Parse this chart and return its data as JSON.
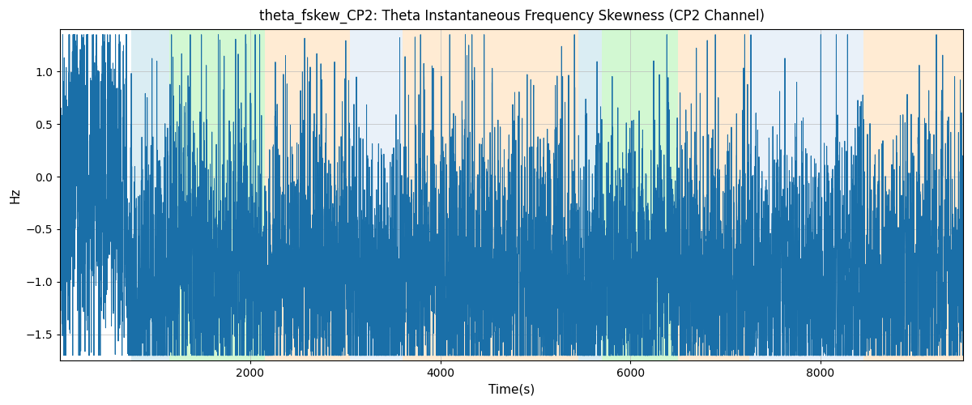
{
  "title": "theta_fskew_CP2: Theta Instantaneous Frequency Skewness (CP2 Channel)",
  "xlabel": "Time(s)",
  "ylabel": "Hz",
  "xlim": [
    0,
    9500
  ],
  "ylim": [
    -1.75,
    1.4
  ],
  "yticks": [
    -1.5,
    -1.0,
    -0.5,
    0.0,
    0.5,
    1.0
  ],
  "xticks": [
    2000,
    4000,
    6000,
    8000
  ],
  "line_color": "#1a6fa8",
  "line_width": 0.7,
  "background_color": "#ffffff",
  "grid_color": "#bbbbbb",
  "bands": [
    {
      "xmin": 750,
      "xmax": 1150,
      "color": "#add8e6",
      "alpha": 0.45
    },
    {
      "xmin": 1150,
      "xmax": 2150,
      "color": "#90ee90",
      "alpha": 0.4
    },
    {
      "xmin": 2150,
      "xmax": 3050,
      "color": "#ffd8a8",
      "alpha": 0.5
    },
    {
      "xmin": 3050,
      "xmax": 3600,
      "color": "#c8ddf0",
      "alpha": 0.4
    },
    {
      "xmin": 3600,
      "xmax": 5450,
      "color": "#ffd8a8",
      "alpha": 0.5
    },
    {
      "xmin": 5450,
      "xmax": 5700,
      "color": "#add8e6",
      "alpha": 0.45
    },
    {
      "xmin": 5700,
      "xmax": 6500,
      "color": "#90ee90",
      "alpha": 0.4
    },
    {
      "xmin": 6500,
      "xmax": 7250,
      "color": "#ffd8a8",
      "alpha": 0.5
    },
    {
      "xmin": 7250,
      "xmax": 8450,
      "color": "#c8ddf0",
      "alpha": 0.4
    },
    {
      "xmin": 8450,
      "xmax": 9500,
      "color": "#ffd8a8",
      "alpha": 0.5
    }
  ],
  "seed": 17,
  "n_points": 9500,
  "title_fontsize": 12,
  "label_fontsize": 11,
  "figsize": [
    12.0,
    5.0
  ],
  "dpi": 100
}
